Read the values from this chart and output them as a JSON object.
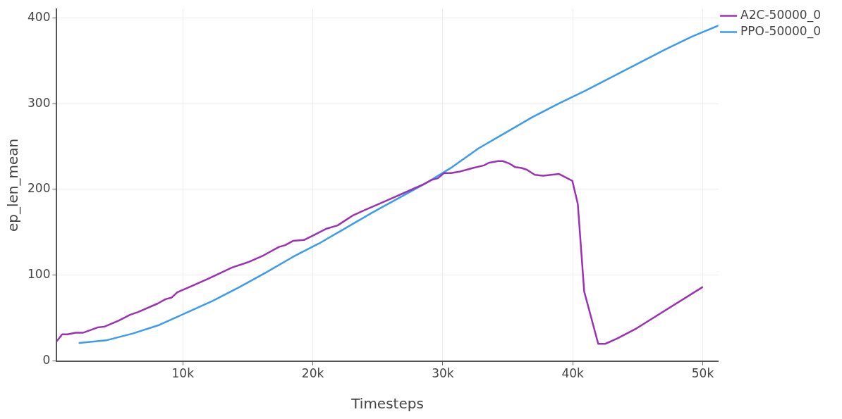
{
  "chart_data": {
    "type": "line",
    "xlabel": "Timesteps",
    "ylabel": "ep_len_mean",
    "xlim": [
      300,
      51200
    ],
    "xticks": [
      {
        "value": 10000,
        "label": "10k"
      },
      {
        "value": 20000,
        "label": "20k"
      },
      {
        "value": 30000,
        "label": "30k"
      },
      {
        "value": 40000,
        "label": "40k"
      },
      {
        "value": 50000,
        "label": "50k"
      }
    ],
    "ylim": [
      0,
      410
    ],
    "yticks": [
      0,
      100,
      200,
      300,
      400
    ],
    "grid": true,
    "legend": "top right",
    "marker": "none",
    "line_style": "solid",
    "series": [
      {
        "name": "A2C-50000_0",
        "color": "#9c31b6",
        "x": [
          300,
          720,
          1140,
          1750,
          2350,
          3430,
          3970,
          5060,
          5960,
          6560,
          8070,
          8670,
          9150,
          9570,
          10480,
          11980,
          13790,
          14990,
          16200,
          17400,
          17880,
          18480,
          19320,
          20110,
          21010,
          21910,
          22510,
          23120,
          24020,
          25830,
          27630,
          28530,
          29130,
          29620,
          30100,
          30640,
          31360,
          31840,
          32330,
          33170,
          33530,
          34250,
          34610,
          35150,
          35570,
          36050,
          36470,
          37080,
          37740,
          38950,
          39970,
          40390,
          40880,
          41960,
          42500,
          43400,
          44910,
          49970
        ],
        "values": [
          23,
          31,
          31,
          33,
          33,
          39,
          40,
          47,
          54,
          57,
          67,
          72,
          74,
          80,
          86,
          96,
          109,
          115,
          123,
          133,
          135,
          140,
          141,
          147,
          154,
          158,
          164,
          170,
          176,
          188,
          200,
          206,
          211,
          213,
          219,
          219,
          221,
          223,
          225,
          228,
          231,
          233,
          233,
          230,
          226,
          225,
          223,
          217,
          216,
          218,
          210,
          183,
          81,
          20,
          20,
          26,
          38,
          86
        ]
      },
      {
        "name": "PPO-50000_0",
        "color": "#3a9bef",
        "x": [
          2048,
          4096,
          6144,
          8192,
          10240,
          12288,
          14336,
          16384,
          18432,
          20480,
          22528,
          24576,
          26624,
          28672,
          30720,
          32768,
          34816,
          36864,
          38912,
          40960,
          43008,
          45056,
          47104,
          49152,
          51200
        ],
        "values": [
          21,
          24,
          32,
          42,
          56,
          70,
          86,
          103,
          121,
          137,
          155,
          173,
          190,
          207,
          226,
          248,
          266,
          284,
          300,
          315,
          331,
          347,
          363,
          378,
          391
        ]
      }
    ]
  }
}
